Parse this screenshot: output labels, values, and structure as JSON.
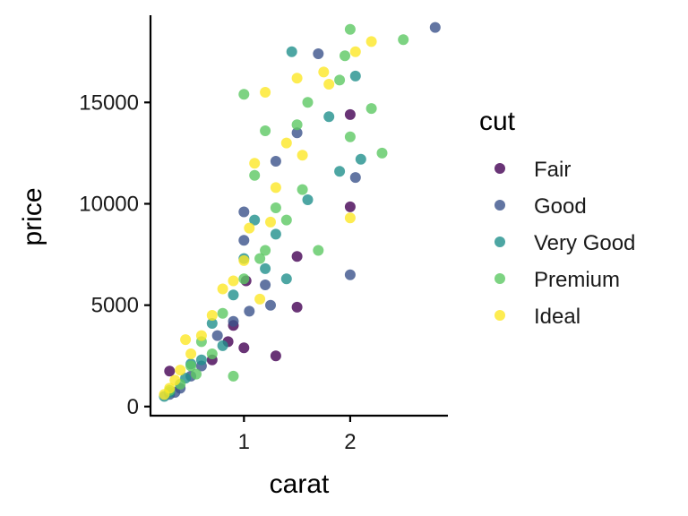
{
  "chart_data": {
    "type": "scatter",
    "xlabel": "carat",
    "ylabel": "price",
    "xlim": [
      0.12,
      2.92
    ],
    "ylim": [
      -450,
      19300
    ],
    "x_ticks": [
      1,
      2
    ],
    "y_ticks": [
      0,
      5000,
      10000,
      15000
    ],
    "x_tick_labels": [
      "1",
      "2"
    ],
    "y_tick_labels": [
      "0",
      "5000",
      "10000",
      "15000"
    ],
    "grid": false,
    "legend": {
      "title": "cut",
      "position": "right"
    },
    "point_alpha": 0.8,
    "series": [
      {
        "name": "Fair",
        "color": "#440154",
        "points": [
          [
            0.3,
            1750
          ],
          [
            0.7,
            2300
          ],
          [
            0.85,
            3200
          ],
          [
            1.0,
            2900
          ],
          [
            1.3,
            2500
          ],
          [
            1.5,
            4900
          ],
          [
            1.5,
            7400
          ],
          [
            2.0,
            9850
          ],
          [
            2.0,
            14400
          ],
          [
            0.9,
            4000
          ],
          [
            1.02,
            6200
          ]
        ]
      },
      {
        "name": "Good",
        "color": "#3B528B",
        "points": [
          [
            2.8,
            18700
          ],
          [
            1.7,
            17400
          ],
          [
            2.05,
            11300
          ],
          [
            2.0,
            6500
          ],
          [
            1.5,
            13500
          ],
          [
            1.3,
            12100
          ],
          [
            1.0,
            9600
          ],
          [
            0.9,
            4200
          ],
          [
            0.75,
            3500
          ],
          [
            0.5,
            1500
          ],
          [
            0.4,
            900
          ],
          [
            1.0,
            8200
          ],
          [
            1.2,
            6000
          ],
          [
            1.25,
            5000
          ],
          [
            0.3,
            600
          ],
          [
            1.05,
            4700
          ],
          [
            0.6,
            2000
          ],
          [
            0.35,
            700
          ]
        ]
      },
      {
        "name": "Very Good",
        "color": "#21908C",
        "points": [
          [
            1.45,
            17500
          ],
          [
            2.05,
            16300
          ],
          [
            1.8,
            14300
          ],
          [
            1.9,
            11600
          ],
          [
            1.6,
            10200
          ],
          [
            1.1,
            9200
          ],
          [
            1.3,
            8500
          ],
          [
            1.0,
            7300
          ],
          [
            0.9,
            5500
          ],
          [
            0.7,
            4100
          ],
          [
            0.5,
            2100
          ],
          [
            0.3,
            700
          ],
          [
            0.25,
            500
          ],
          [
            0.45,
            1400
          ],
          [
            1.2,
            6800
          ],
          [
            1.4,
            6300
          ],
          [
            0.8,
            3000
          ],
          [
            0.6,
            2300
          ],
          [
            2.1,
            12200
          ]
        ]
      },
      {
        "name": "Premium",
        "color": "#5DC863",
        "points": [
          [
            2.0,
            18600
          ],
          [
            2.5,
            18100
          ],
          [
            1.95,
            17300
          ],
          [
            2.3,
            12500
          ],
          [
            2.2,
            14700
          ],
          [
            1.6,
            15000
          ],
          [
            1.5,
            13900
          ],
          [
            1.2,
            13600
          ],
          [
            1.0,
            15400
          ],
          [
            1.1,
            11400
          ],
          [
            1.4,
            9200
          ],
          [
            1.2,
            7700
          ],
          [
            1.0,
            6300
          ],
          [
            0.8,
            4600
          ],
          [
            0.6,
            3200
          ],
          [
            0.5,
            2000
          ],
          [
            0.4,
            1100
          ],
          [
            0.3,
            800
          ],
          [
            0.9,
            1500
          ],
          [
            1.7,
            7700
          ],
          [
            1.55,
            10700
          ],
          [
            1.3,
            9800
          ],
          [
            1.15,
            7300
          ],
          [
            0.7,
            2600
          ],
          [
            0.55,
            1600
          ],
          [
            2.0,
            13300
          ],
          [
            1.9,
            16100
          ]
        ]
      },
      {
        "name": "Ideal",
        "color": "#FDE725",
        "points": [
          [
            2.2,
            18000
          ],
          [
            2.05,
            17500
          ],
          [
            1.75,
            16500
          ],
          [
            1.5,
            16200
          ],
          [
            1.4,
            13000
          ],
          [
            1.2,
            15500
          ],
          [
            1.1,
            12000
          ],
          [
            1.3,
            10800
          ],
          [
            1.05,
            8800
          ],
          [
            0.8,
            5800
          ],
          [
            0.7,
            4500
          ],
          [
            0.6,
            3500
          ],
          [
            0.5,
            2600
          ],
          [
            0.4,
            1800
          ],
          [
            0.3,
            900
          ],
          [
            0.25,
            600
          ],
          [
            1.0,
            7200
          ],
          [
            1.25,
            9100
          ],
          [
            1.55,
            12400
          ],
          [
            1.8,
            15900
          ],
          [
            0.9,
            6200
          ],
          [
            2.0,
            9300
          ],
          [
            1.15,
            5300
          ],
          [
            0.45,
            3300
          ],
          [
            0.35,
            1300
          ]
        ]
      }
    ]
  }
}
